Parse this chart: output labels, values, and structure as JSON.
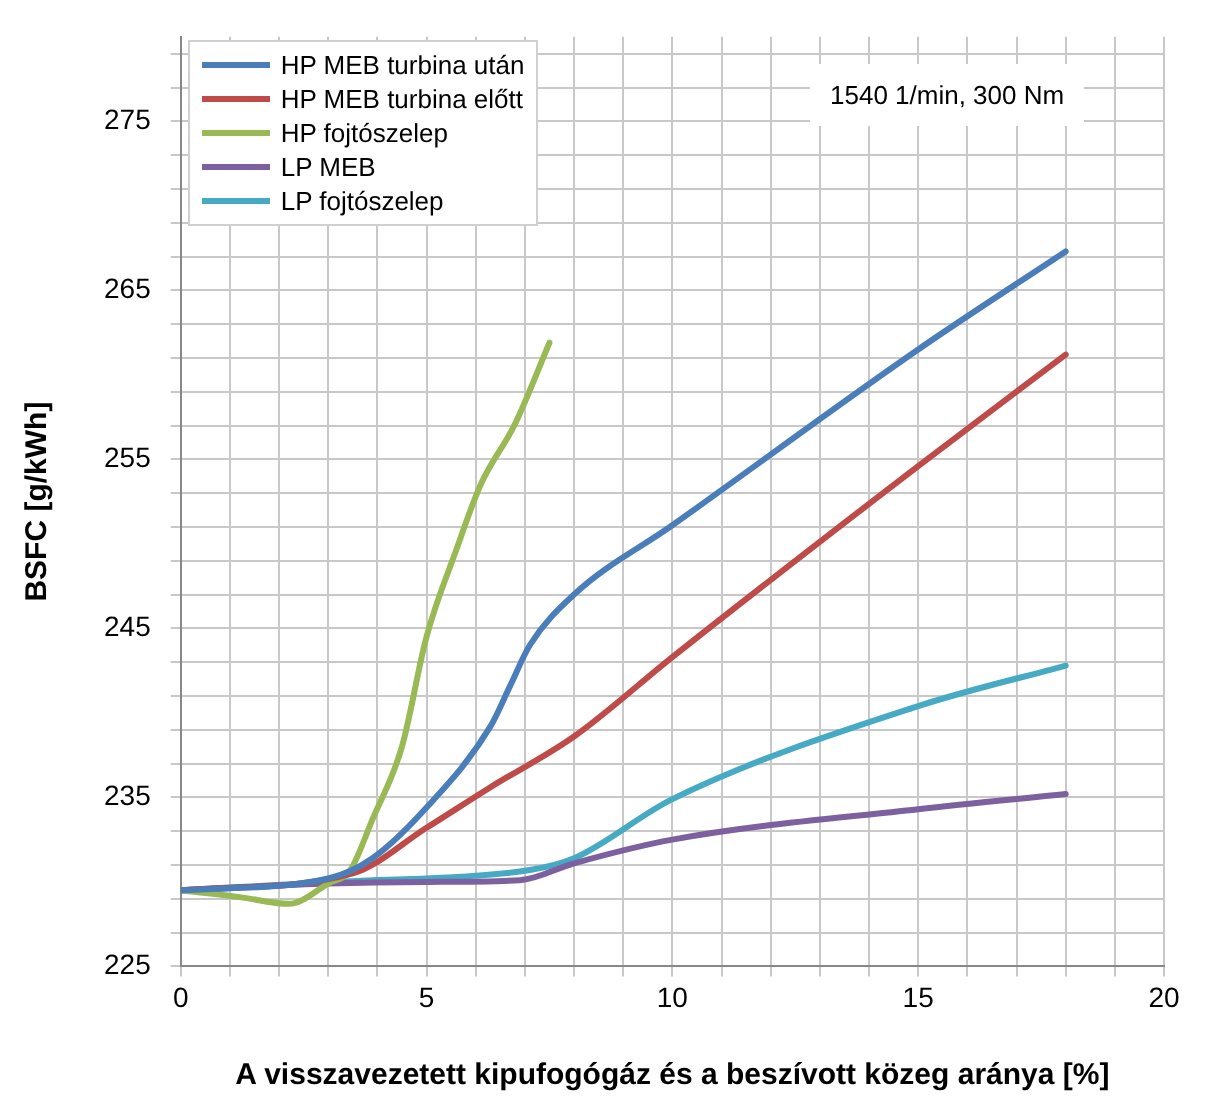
{
  "chart_data": {
    "type": "line",
    "xlabel": "A visszavezetett kipufogógáz és a beszívott közeg aránya [%]",
    "ylabel": "BSFC [g/kWh]",
    "annotations": [
      "1540 1/min, 300 Nm"
    ],
    "xlim": [
      0,
      20
    ],
    "ylim": [
      225,
      280
    ],
    "xticks": [
      0,
      {
        "value": 1,
        "label": null
      },
      {
        "value": 2,
        "label": null
      },
      {
        "value": 3,
        "label": null
      },
      {
        "value": 4,
        "label": null
      },
      5,
      {
        "value": 6,
        "label": null
      },
      {
        "value": 7,
        "label": null
      },
      {
        "value": 8,
        "label": null
      },
      {
        "value": 9,
        "label": null
      },
      10,
      {
        "value": 11,
        "label": null
      },
      {
        "value": 12,
        "label": null
      },
      {
        "value": 13,
        "label": null
      },
      {
        "value": 14,
        "label": null
      },
      15,
      {
        "value": 16,
        "label": null
      },
      {
        "value": 17,
        "label": null
      },
      {
        "value": 18,
        "label": null
      },
      {
        "value": 19,
        "label": null
      },
      20
    ],
    "yticks": [
      225,
      {
        "value": 227,
        "label": null
      },
      {
        "value": 229,
        "label": null
      },
      {
        "value": 231,
        "label": null
      },
      {
        "value": 233,
        "label": null
      },
      235,
      {
        "value": 237,
        "label": null
      },
      {
        "value": 239,
        "label": null
      },
      {
        "value": 241,
        "label": null
      },
      {
        "value": 243,
        "label": null
      },
      245,
      {
        "value": 247,
        "label": null
      },
      {
        "value": 249,
        "label": null
      },
      {
        "value": 251,
        "label": null
      },
      {
        "value": 253,
        "label": null
      },
      255,
      {
        "value": 257,
        "label": null
      },
      {
        "value": 259,
        "label": null
      },
      {
        "value": 261,
        "label": null
      },
      {
        "value": 263,
        "label": null
      },
      265,
      {
        "value": 267,
        "label": null
      },
      {
        "value": 269,
        "label": null
      },
      {
        "value": 271,
        "label": null
      },
      {
        "value": 273,
        "label": null
      },
      275,
      {
        "value": 277,
        "label": null
      },
      {
        "value": 279,
        "label": null
      }
    ],
    "grid": true,
    "legend": "top left",
    "marker": "none",
    "line_style": "solid",
    "series": [
      {
        "name": "HP MEB turbina után",
        "color": "#4a7ebb",
        "x": [
          0,
          3,
          3.9,
          5,
          6.3,
          6.7,
          7.1,
          8,
          10,
          15,
          18
        ],
        "values": [
          229.5,
          230.2,
          231.4,
          234.4,
          239.2,
          241.6,
          244,
          247,
          251.1,
          261.5,
          267.3
        ]
      },
      {
        "name": "HP MEB turbina előtt",
        "color": "#be4b48",
        "x": [
          0,
          3.5,
          5,
          6.3,
          8,
          10,
          15,
          18
        ],
        "values": [
          229.5,
          230.5,
          233.2,
          235.6,
          238.6,
          243.3,
          254.6,
          261.2
        ]
      },
      {
        "name": "HP fojtószelep",
        "color": "#98b954",
        "x": [
          0,
          1.2,
          2.2,
          3,
          3.45,
          3.9,
          4.5,
          5,
          5.6,
          6.1,
          6.8,
          7.5
        ],
        "values": [
          229.5,
          229.1,
          228.7,
          229.9,
          230.7,
          233.7,
          238,
          244.5,
          249.6,
          253.5,
          257.1,
          261.9
        ]
      },
      {
        "name": "LP MEB",
        "color": "#7d60a0",
        "x": [
          0,
          3,
          5,
          6.9,
          8,
          10,
          15,
          18
        ],
        "values": [
          229.5,
          229.9,
          230,
          230.1,
          231.1,
          232.5,
          234.3,
          235.2
        ]
      },
      {
        "name": "LP fojtószelep",
        "color": "#46aac5",
        "x": [
          0,
          3.9,
          5,
          7.1,
          8,
          10,
          15,
          18
        ],
        "values": [
          229.5,
          230.1,
          230.2,
          230.7,
          231.4,
          234.9,
          240.4,
          242.8
        ]
      }
    ]
  }
}
